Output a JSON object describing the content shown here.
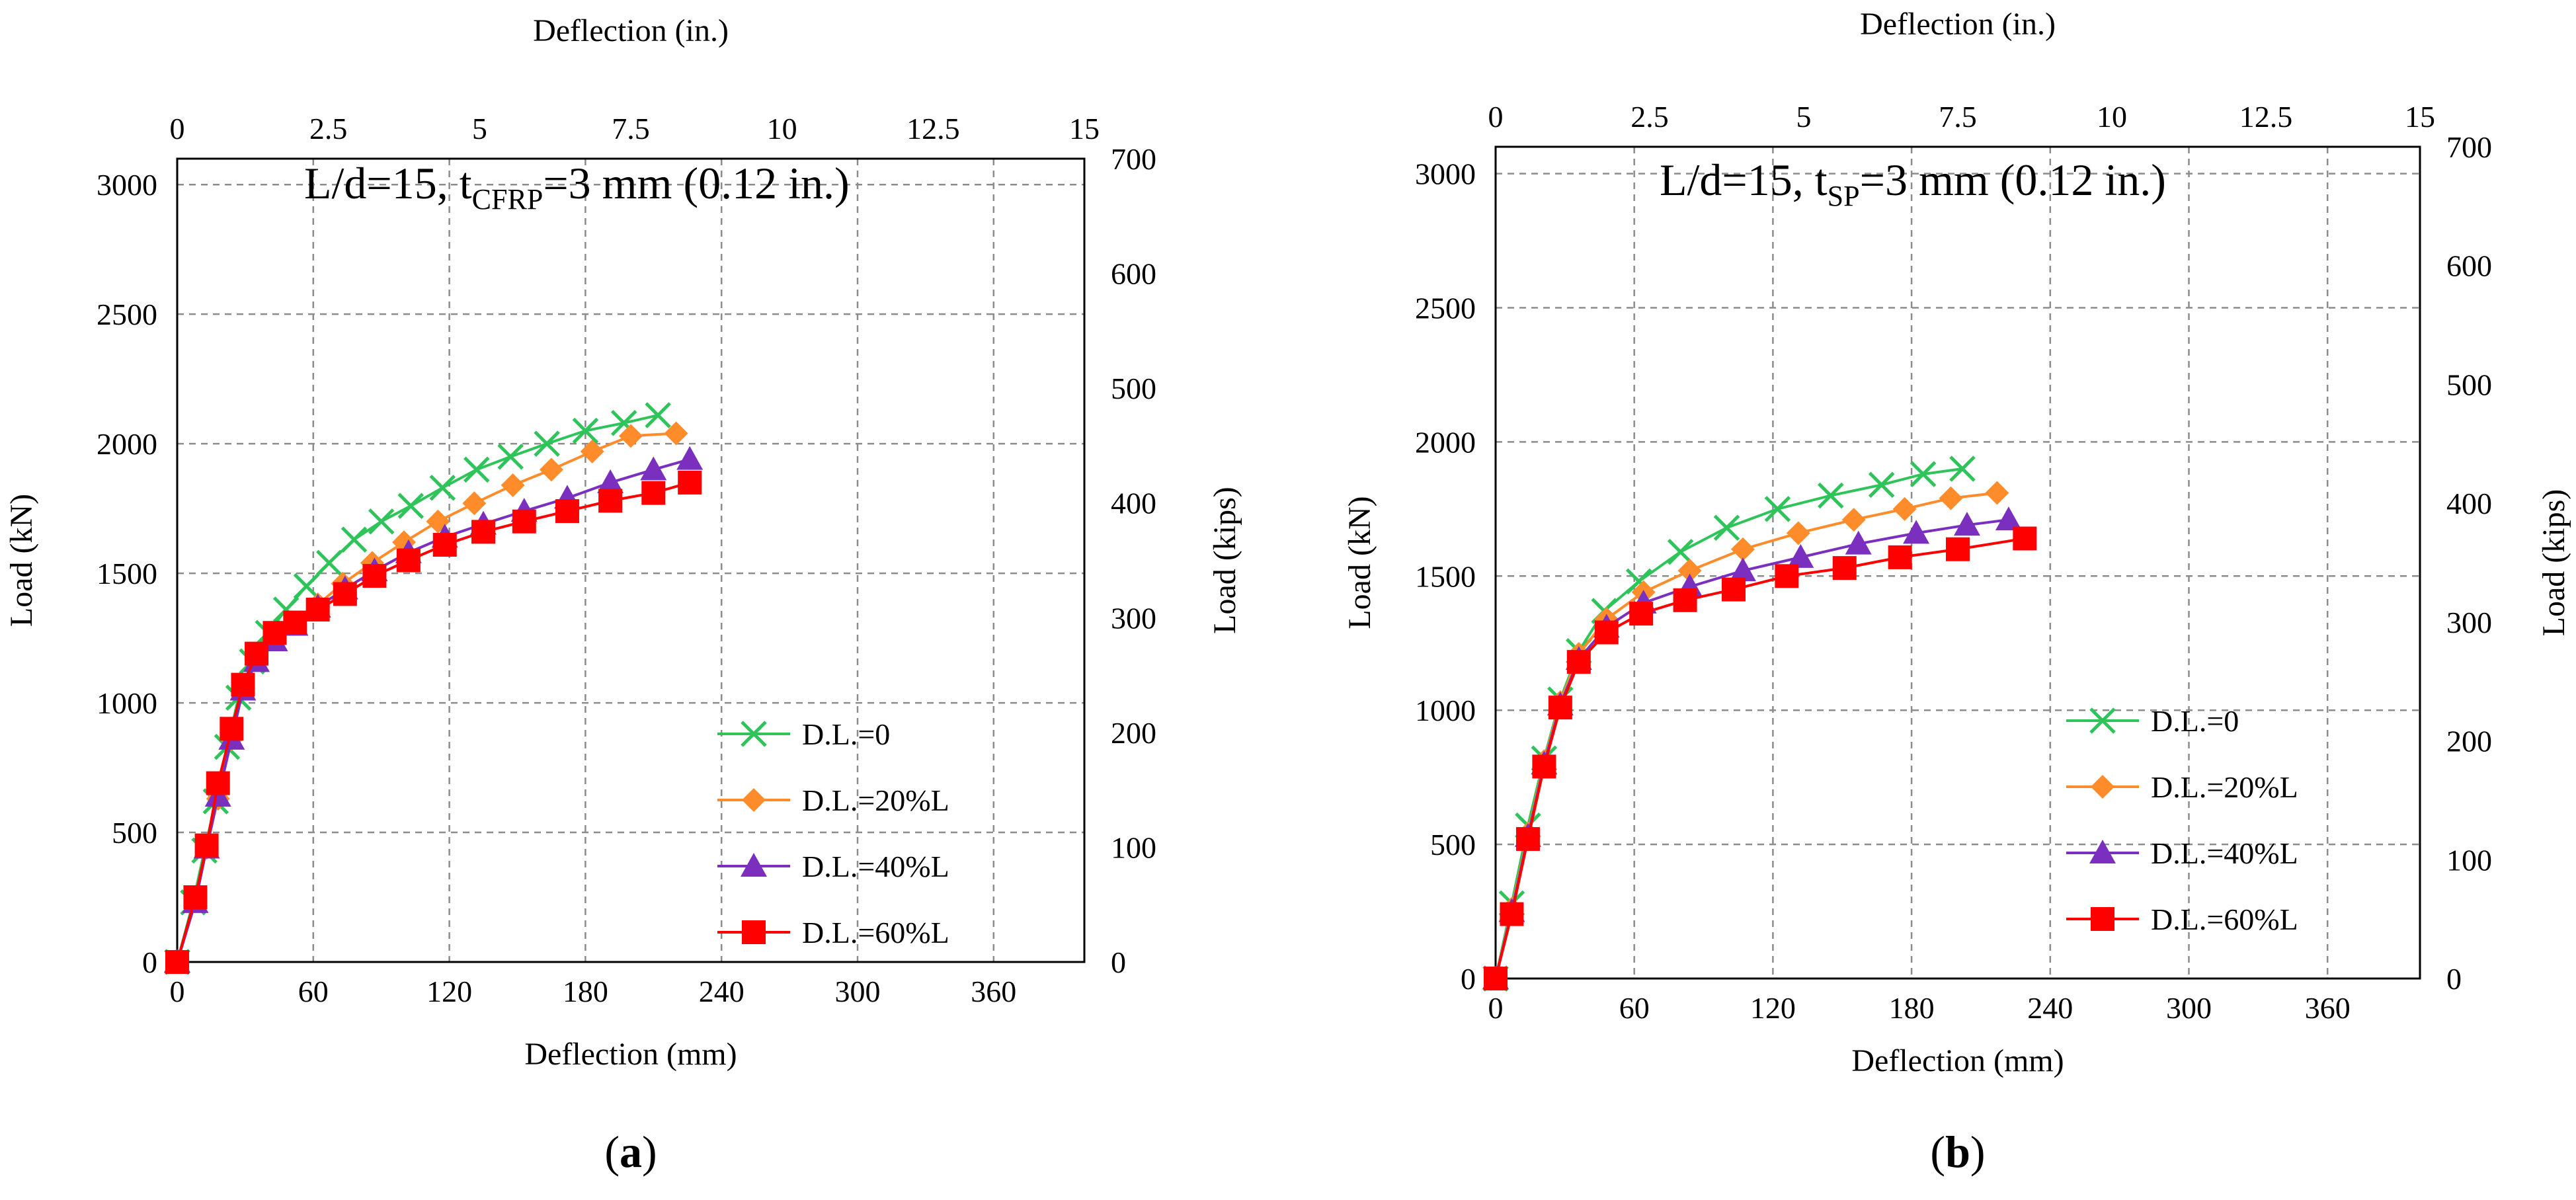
{
  "colors": {
    "D.L.=0": "#2ec45a",
    "D.L.=20%L": "#ff8c2a",
    "D.L.=40%L": "#7b2fbe",
    "D.L.=60%L": "#ff0000"
  },
  "chart_data": [
    {
      "type": "line",
      "panel_label": "a",
      "title": {
        "prefix": "L/d=15, t",
        "subscript": "CFRP",
        "suffix": "=3 mm (0.12 in.)"
      },
      "xlabel": "Deflection (mm)",
      "ylabel": "Load (kN)",
      "x2label": "Deflection (in.)",
      "y2label": "Load (kips)",
      "xlim": [
        0,
        400
      ],
      "ylim": [
        0,
        3100
      ],
      "xticks": [
        0,
        60,
        120,
        180,
        240,
        300,
        360
      ],
      "yticks": [
        0,
        500,
        1000,
        1500,
        2000,
        2500,
        3000
      ],
      "x2lim": [
        0,
        15
      ],
      "x2ticks": [
        "0",
        "2.5",
        "5",
        "7.5",
        "10",
        "12.5",
        "15"
      ],
      "y2lim": [
        0,
        700
      ],
      "y2ticks": [
        0,
        100,
        200,
        300,
        400,
        500,
        600,
        700
      ],
      "legend": {
        "placement": "lower-right"
      },
      "series": [
        {
          "name": "D.L.=0",
          "marker": "x",
          "x": [
            0,
            7,
            12,
            17,
            22,
            27,
            33,
            40,
            48,
            57,
            67,
            78,
            90,
            103,
            117,
            132,
            147,
            163,
            180,
            197,
            212
          ],
          "y": [
            0,
            230,
            430,
            620,
            830,
            1020,
            1160,
            1270,
            1360,
            1450,
            1540,
            1630,
            1700,
            1760,
            1830,
            1900,
            1950,
            2000,
            2050,
            2080,
            2110
          ]
        },
        {
          "name": "D.L.=20%L",
          "marker": "diamond",
          "x": [
            0,
            8,
            13,
            18,
            24,
            29,
            35,
            43,
            52,
            62,
            73,
            86,
            100,
            115,
            131,
            148,
            165,
            183,
            200,
            220
          ],
          "y": [
            0,
            240,
            440,
            630,
            860,
            1060,
            1170,
            1250,
            1310,
            1380,
            1460,
            1540,
            1620,
            1700,
            1770,
            1840,
            1900,
            1970,
            2030,
            2040
          ]
        },
        {
          "name": "D.L.=40%L",
          "marker": "triangle",
          "x": [
            0,
            8,
            13,
            18,
            24,
            29,
            35,
            43,
            52,
            62,
            74,
            87,
            102,
            118,
            135,
            153,
            172,
            191,
            210,
            226
          ],
          "y": [
            0,
            230,
            440,
            640,
            860,
            1050,
            1160,
            1240,
            1300,
            1370,
            1440,
            1510,
            1580,
            1640,
            1690,
            1740,
            1790,
            1850,
            1900,
            1940
          ]
        },
        {
          "name": "D.L.=60%L",
          "marker": "square",
          "x": [
            0,
            8,
            13,
            18,
            24,
            29,
            35,
            43,
            52,
            62,
            74,
            87,
            102,
            118,
            135,
            153,
            172,
            191,
            210,
            226
          ],
          "y": [
            0,
            250,
            450,
            690,
            900,
            1070,
            1190,
            1270,
            1310,
            1360,
            1420,
            1490,
            1550,
            1610,
            1660,
            1700,
            1740,
            1780,
            1810,
            1850
          ]
        }
      ]
    },
    {
      "type": "line",
      "panel_label": "b",
      "title": {
        "prefix": "L/d=15, t",
        "subscript": "SP",
        "suffix": "=3 mm (0.12 in.)"
      },
      "xlabel": "Deflection (mm)",
      "ylabel": "Load (kN)",
      "x2label": "Deflection (in.)",
      "y2label": "Load (kips)",
      "xlim": [
        0,
        400
      ],
      "ylim": [
        0,
        3100
      ],
      "xticks": [
        0,
        60,
        120,
        180,
        240,
        300,
        360
      ],
      "yticks": [
        0,
        500,
        1000,
        1500,
        2000,
        2500,
        3000
      ],
      "x2lim": [
        0,
        15
      ],
      "x2ticks": [
        "0",
        "2.5",
        "5",
        "7.5",
        "10",
        "12.5",
        "15"
      ],
      "y2lim": [
        0,
        700
      ],
      "y2ticks": [
        0,
        100,
        200,
        300,
        400,
        500,
        600,
        700
      ],
      "legend": {
        "placement": "lower-right"
      },
      "series": [
        {
          "name": "D.L.=0",
          "marker": "x",
          "x": [
            0,
            7,
            14,
            21,
            28,
            36,
            47,
            62,
            80,
            100,
            122,
            145,
            167,
            185,
            202
          ],
          "y": [
            0,
            280,
            570,
            820,
            1040,
            1220,
            1370,
            1480,
            1590,
            1680,
            1750,
            1800,
            1840,
            1880,
            1900
          ]
        },
        {
          "name": "D.L.=20%L",
          "marker": "diamond",
          "x": [
            0,
            7,
            14,
            21,
            28,
            36,
            48,
            64,
            84,
            107,
            131,
            155,
            177,
            197,
            217
          ],
          "y": [
            0,
            260,
            540,
            810,
            1030,
            1210,
            1340,
            1440,
            1520,
            1600,
            1660,
            1710,
            1750,
            1790,
            1810
          ]
        },
        {
          "name": "D.L.=40%L",
          "marker": "triangle",
          "x": [
            0,
            7,
            14,
            21,
            28,
            36,
            48,
            64,
            84,
            107,
            132,
            157,
            182,
            204,
            222
          ],
          "y": [
            0,
            250,
            530,
            800,
            1020,
            1190,
            1310,
            1400,
            1460,
            1520,
            1570,
            1620,
            1660,
            1690,
            1710
          ]
        },
        {
          "name": "D.L.=60%L",
          "marker": "square",
          "x": [
            0,
            7,
            14,
            21,
            28,
            36,
            48,
            63,
            82,
            103,
            126,
            151,
            175,
            200,
            229
          ],
          "y": [
            0,
            240,
            520,
            790,
            1010,
            1180,
            1290,
            1360,
            1410,
            1450,
            1500,
            1530,
            1570,
            1600,
            1640
          ]
        }
      ]
    }
  ]
}
